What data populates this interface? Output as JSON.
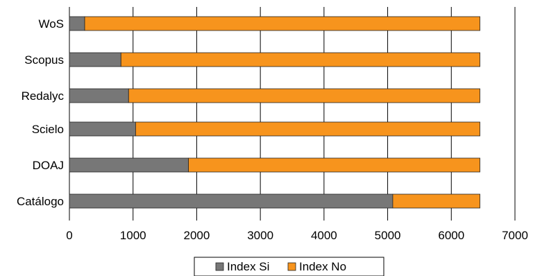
{
  "chart_data": {
    "type": "bar",
    "orientation": "horizontal",
    "stacked": true,
    "categories": [
      "WoS",
      "Scopus",
      "Redalyc",
      "Scielo",
      "DOAJ",
      "Catálogo"
    ],
    "series": [
      {
        "name": "Index Si",
        "values": [
          240,
          810,
          930,
          1040,
          1870,
          5080
        ],
        "color": "#777777"
      },
      {
        "name": "Index No",
        "values": [
          6210,
          5640,
          5520,
          5410,
          4580,
          1370
        ],
        "color": "#f7941d"
      }
    ],
    "xlim": [
      0,
      7000
    ],
    "xticks": [
      "0",
      "1000",
      "2000",
      "3000",
      "4000",
      "5000",
      "6000",
      "7000"
    ],
    "grid": "vertical",
    "legend_position": "bottom"
  }
}
